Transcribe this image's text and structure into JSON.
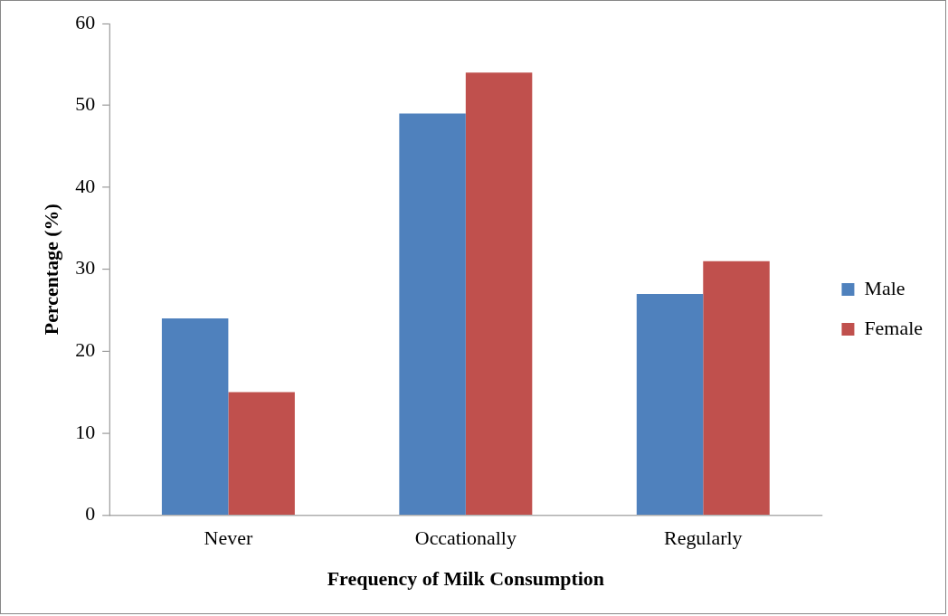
{
  "chart_data": {
    "type": "bar",
    "xlabel": "Frequency of Milk Consumption",
    "ylabel": "Percentage (%)",
    "categories": [
      "Never",
      "Occationally",
      "Regularly"
    ],
    "series": [
      {
        "name": "Male",
        "color": "#4f81bd",
        "values": [
          24,
          49,
          27
        ]
      },
      {
        "name": "Female",
        "color": "#c0504d",
        "values": [
          15,
          54,
          31
        ]
      }
    ],
    "ylim": [
      0,
      60
    ],
    "yticks": [
      0,
      10,
      20,
      30,
      40,
      50,
      60
    ],
    "grid": false,
    "legend": "right"
  }
}
